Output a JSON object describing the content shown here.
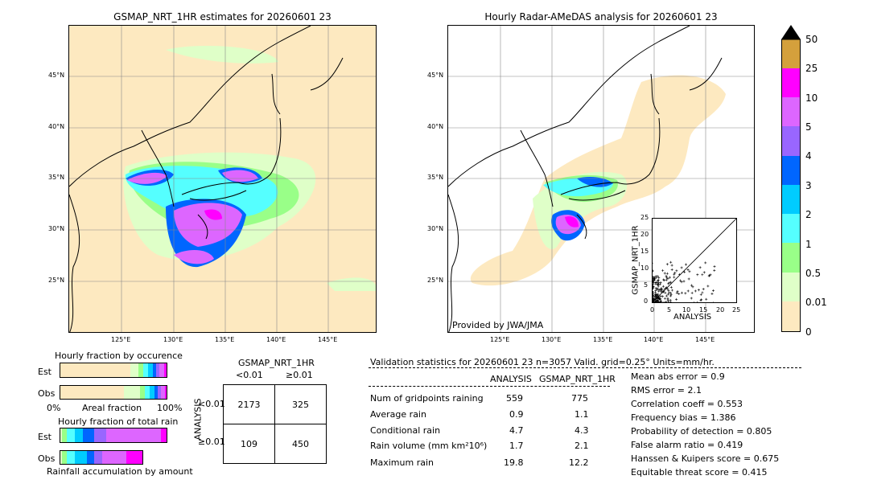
{
  "left_map": {
    "title": "GSMAP_NRT_1HR estimates for 20260601 23",
    "lat_ticks": [
      "45°N",
      "40°N",
      "35°N",
      "30°N",
      "25°N"
    ],
    "lon_ticks": [
      "125°E",
      "130°E",
      "135°E",
      "140°E",
      "145°E"
    ]
  },
  "right_map": {
    "title": "Hourly Radar-AMeDAS analysis for 20260601 23",
    "lat_ticks": [
      "45°N",
      "40°N",
      "35°N",
      "30°N",
      "25°N"
    ],
    "lon_ticks": [
      "125°E",
      "130°E",
      "135°E",
      "140°E",
      "145°E"
    ],
    "credit": "Provided by JWA/JMA"
  },
  "colorbar": {
    "labels": [
      "50",
      "25",
      "10",
      "5",
      "4",
      "3",
      "2",
      "1",
      "0.5",
      "0.01",
      "0"
    ],
    "colors": [
      "#000000",
      "#d4a03c",
      "#ff00ff",
      "#dd66ff",
      "#9966ff",
      "#0066ff",
      "#00ccff",
      "#55ffff",
      "#99ff88",
      "#dfffc8",
      "#fde9c0"
    ]
  },
  "scatter": {
    "xlabel": "ANALYSIS",
    "ylabel": "GSMAP_NRT_1HR",
    "ticks": [
      "0",
      "5",
      "10",
      "15",
      "20",
      "25"
    ]
  },
  "fraction_occurrence": {
    "title": "Hourly fraction by occurence",
    "row_labels": [
      "Est",
      "Obs"
    ],
    "axis_left": "0%",
    "axis_mid": "Areal fraction",
    "axis_right": "100%"
  },
  "fraction_rain": {
    "title": "Hourly fraction of total rain",
    "row_labels": [
      "Est",
      "Obs"
    ],
    "footer": "Rainfall accumulation by amount"
  },
  "contingency": {
    "title": "GSMAP_NRT_1HR",
    "col_labels": [
      "<0.01",
      "≥0.01"
    ],
    "row_title": "ANALYSIS",
    "row_labels": [
      "<0.01",
      "≥0.01"
    ],
    "cells": [
      [
        "2173",
        "325"
      ],
      [
        "109",
        "450"
      ]
    ]
  },
  "validation": {
    "header": "Validation statistics for 20260601 23  n=3057 Valid. grid=0.25° Units=mm/hr.",
    "col_analysis": "ANALYSIS",
    "col_gsmap": "GSMAP_NRT_1HR",
    "rows": [
      {
        "label": "Num of gridpoints raining",
        "analysis": "559",
        "gsmap": "775"
      },
      {
        "label": "Average rain",
        "analysis": "0.9",
        "gsmap": "1.1"
      },
      {
        "label": "Conditional rain",
        "analysis": "4.7",
        "gsmap": "4.3"
      },
      {
        "label": "Rain volume (mm km²10⁶)",
        "analysis": "1.7",
        "gsmap": "2.1"
      },
      {
        "label": "Maximum rain",
        "analysis": "19.8",
        "gsmap": "12.2"
      }
    ],
    "scores": [
      "Mean abs error =    0.9",
      "RMS error =    2.1",
      "Correlation coeff =  0.553",
      "Frequency bias =  1.386",
      "Probability of detection =  0.805",
      "False alarm ratio =  0.419",
      "Hanssen & Kuipers score =  0.675",
      "Equitable threat score =  0.415"
    ]
  },
  "chart_data": [
    {
      "type": "scatter",
      "xlabel": "ANALYSIS",
      "ylabel": "GSMAP_NRT_1HR",
      "xlim": [
        0,
        25
      ],
      "ylim": [
        0,
        25
      ],
      "ticks": [
        0,
        5,
        10,
        15,
        20,
        25
      ]
    },
    {
      "type": "table",
      "title": "GSMAP_NRT_1HR",
      "rows": [
        "<0.01",
        "≥0.01"
      ],
      "columns": [
        "<0.01",
        "≥0.01"
      ],
      "values": [
        [
          2173,
          325
        ],
        [
          109,
          450
        ]
      ]
    }
  ]
}
